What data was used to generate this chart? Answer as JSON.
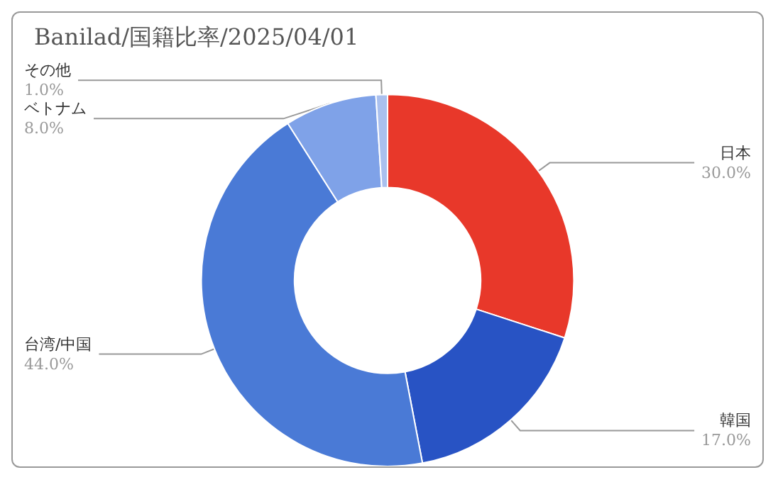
{
  "chart_data": {
    "type": "donut",
    "title": "Banilad/国籍比率/2025/04/01",
    "categories": [
      "日本",
      "韓国",
      "台湾/中国",
      "ベトナム",
      "その他"
    ],
    "values": [
      30.0,
      17.0,
      44.0,
      8.0,
      1.0
    ],
    "colors": [
      "#e8382a",
      "#2853c4",
      "#4a7ad6",
      "#7fa2e8",
      "#aac0ee"
    ],
    "value_labels": [
      "30.0%",
      "17.0%",
      "44.0%",
      "8.0%",
      "1.0%"
    ],
    "legend": false
  }
}
